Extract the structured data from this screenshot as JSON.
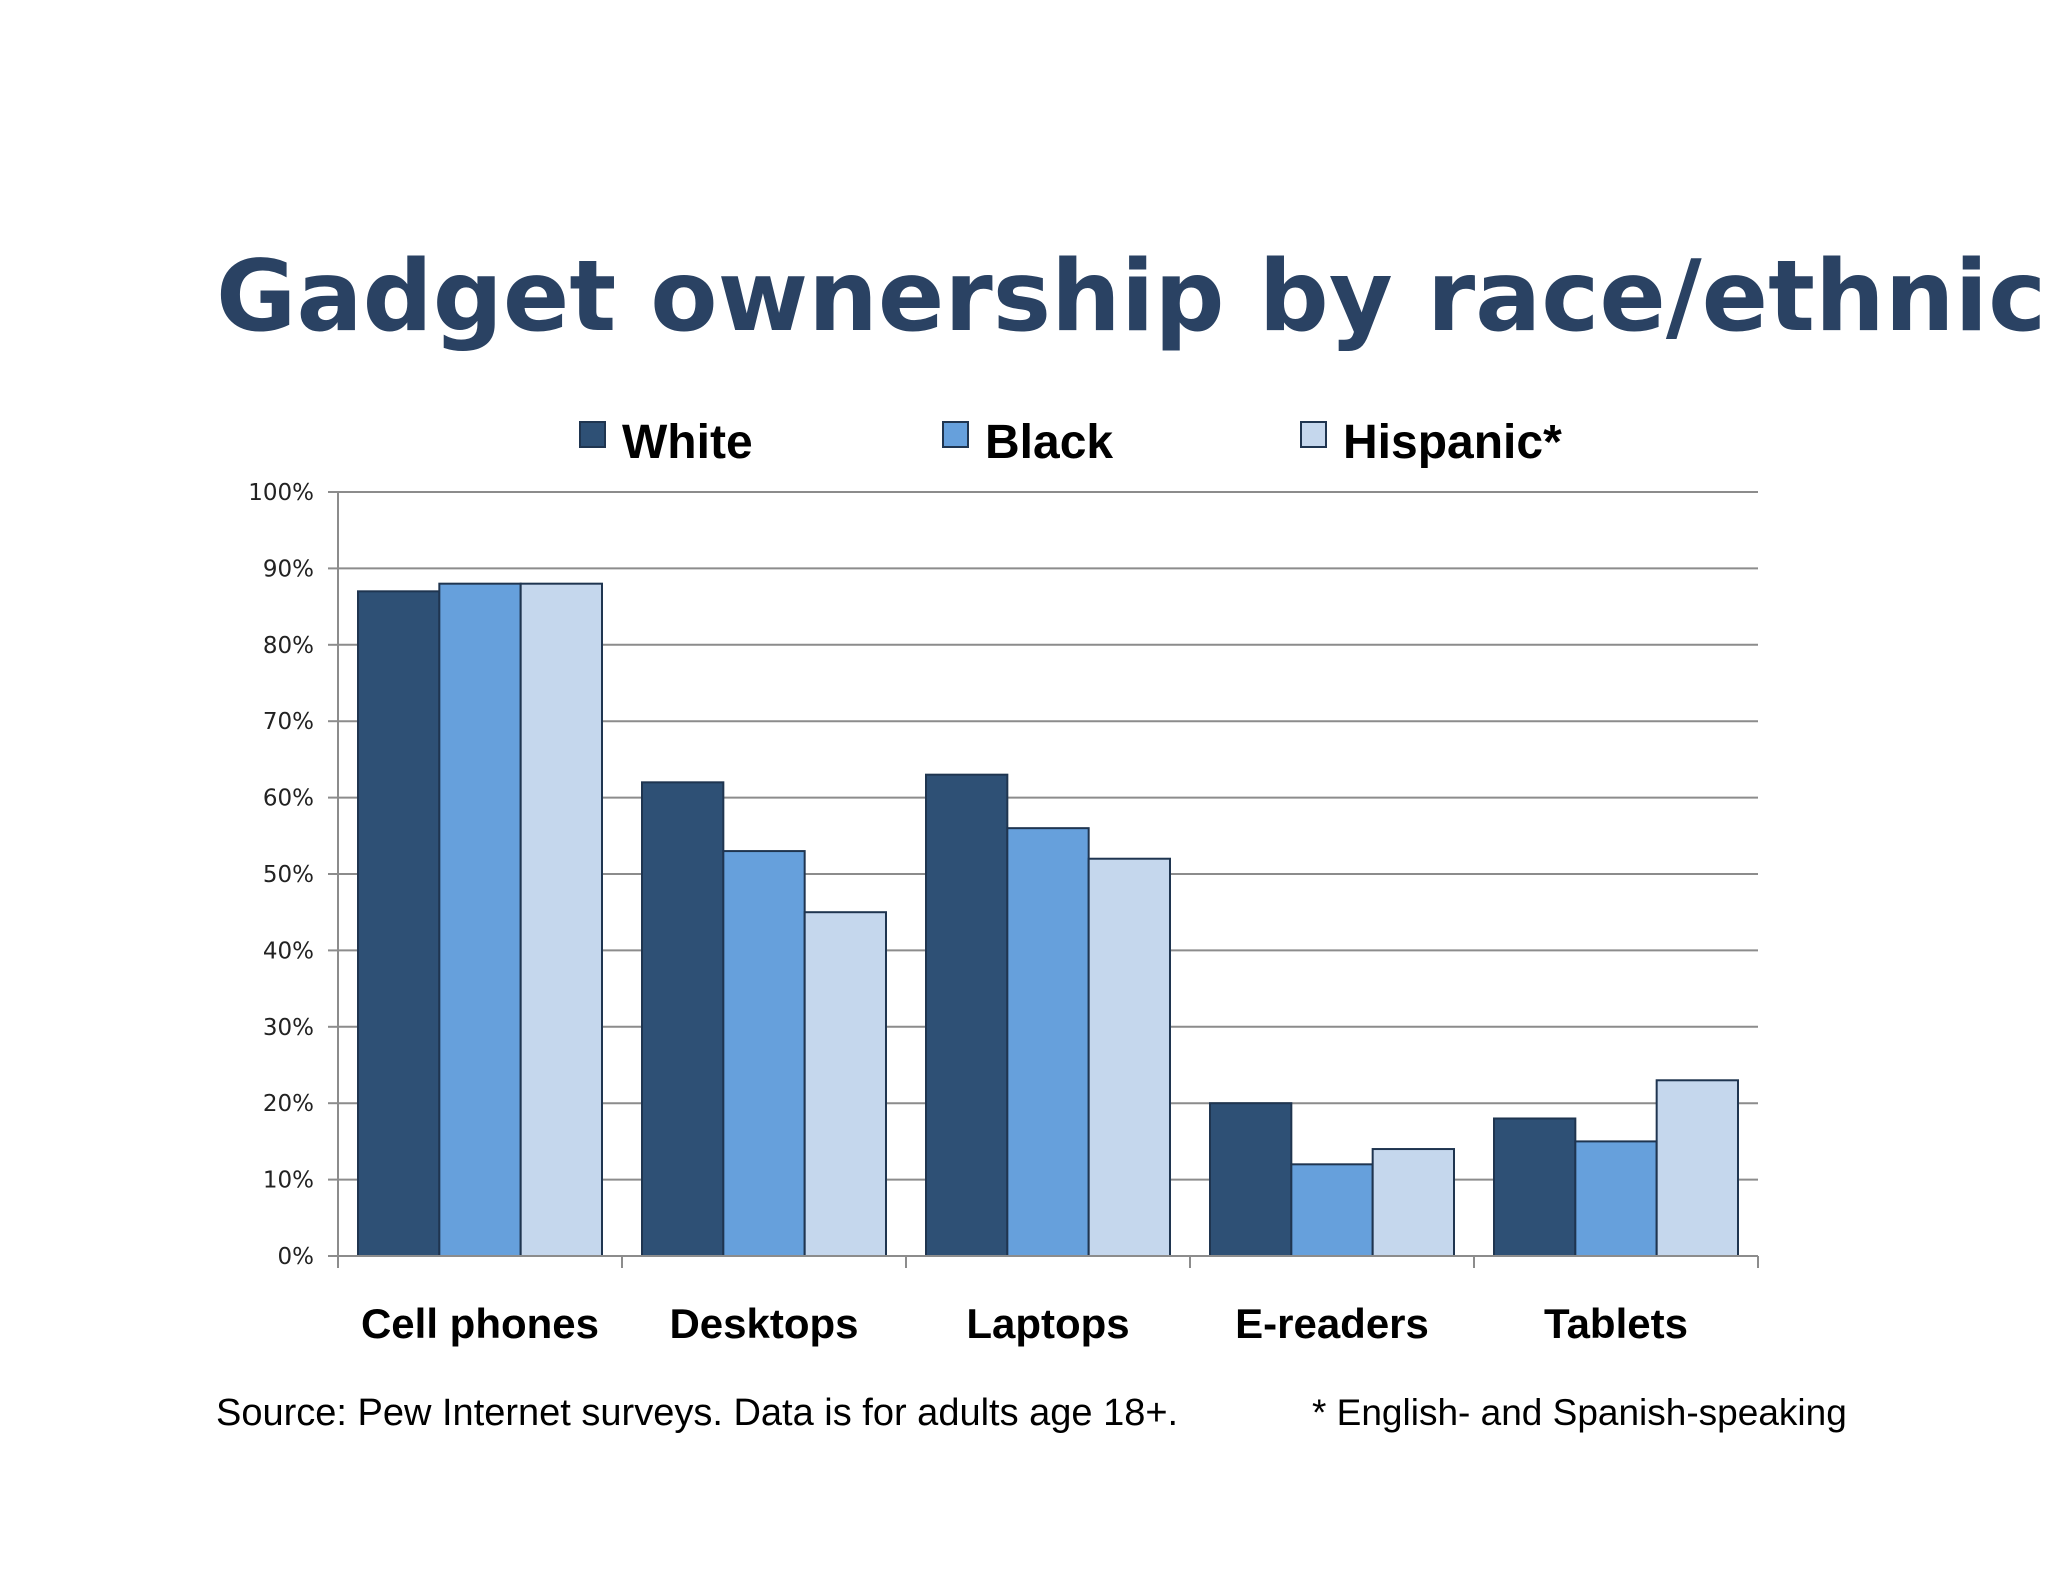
{
  "chart_data": {
    "type": "bar",
    "title": "Gadget ownership by race/ethnicity",
    "categories": [
      "Cell phones",
      "Desktops",
      "Laptops",
      "E-readers",
      "Tablets"
    ],
    "series": [
      {
        "name": "White",
        "values": [
          87,
          62,
          63,
          20,
          18
        ]
      },
      {
        "name": "Black",
        "values": [
          88,
          53,
          56,
          12,
          15
        ]
      },
      {
        "name": "Hispanic*",
        "values": [
          88,
          45,
          52,
          14,
          23
        ]
      }
    ],
    "y_ticks": [
      "0%",
      "10%",
      "20%",
      "30%",
      "40%",
      "50%",
      "60%",
      "70%",
      "80%",
      "90%",
      "100%"
    ],
    "ylim": [
      0,
      100
    ],
    "grid": true,
    "legend_position": "top"
  },
  "colors": {
    "title": "#2a4263",
    "series": [
      "#2e5075",
      "#66a0dc",
      "#c5d7ed"
    ],
    "bar_border": "#1f3550",
    "grid": "#8c8c8c",
    "axis": "#8c8c8c"
  },
  "footer": {
    "source": "Source: Pew Internet surveys. Data is for adults age 18+.",
    "note": "* English- and Spanish-speaking"
  }
}
